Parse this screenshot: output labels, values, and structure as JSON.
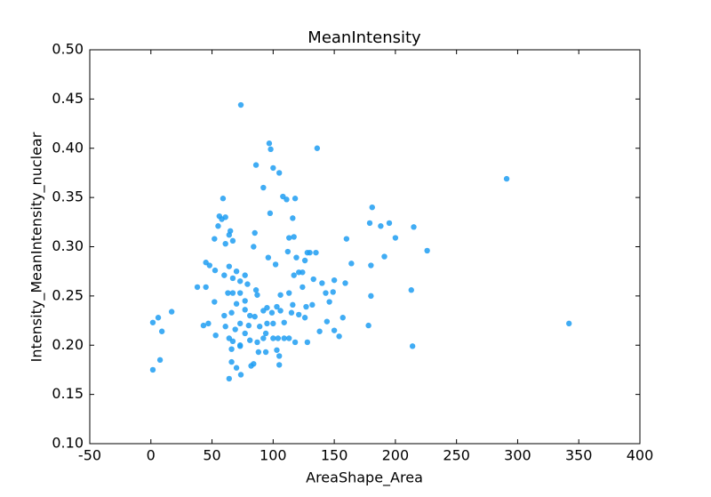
{
  "chart_data": {
    "type": "scatter",
    "title": "MeanIntensity",
    "xlabel": "AreaShape_Area",
    "ylabel": "Intensity_MeanIntensity_nuclear",
    "color": "#1e9ef2",
    "xlim": [
      -50,
      400
    ],
    "xticks": [
      -50,
      0,
      50,
      100,
      150,
      200,
      250,
      300,
      350,
      400
    ],
    "ylim": [
      0.1,
      0.5
    ],
    "yticks": [
      {
        "value": 0.1,
        "label": "0.10"
      },
      {
        "value": 0.15,
        "label": "0.15"
      },
      {
        "value": 0.2,
        "label": "0.20"
      },
      {
        "value": 0.25,
        "label": "0.25"
      },
      {
        "value": 0.3,
        "label": "0.30"
      },
      {
        "value": 0.35,
        "label": "0.35"
      },
      {
        "value": 0.4,
        "label": "0.40"
      },
      {
        "value": 0.45,
        "label": "0.45"
      },
      {
        "value": 0.5,
        "label": "0.50"
      }
    ],
    "x": [
      73.6,
      291,
      342,
      96.8,
      98,
      136,
      100,
      105,
      86,
      92,
      108,
      111,
      118,
      116,
      97.5,
      59,
      56,
      58,
      61,
      55,
      65,
      64,
      52,
      61,
      67,
      84,
      85,
      113,
      117,
      112,
      102,
      96,
      119,
      126,
      128,
      130,
      135,
      160,
      164,
      179,
      181,
      188,
      195,
      200,
      215,
      226,
      191,
      180,
      180,
      213,
      178,
      214,
      154,
      1.6,
      1.6,
      6,
      7.5,
      9,
      17,
      38,
      45,
      48,
      45,
      43,
      47,
      52,
      53,
      52.5,
      64,
      70,
      73.6,
      66,
      66,
      82,
      84,
      88,
      94,
      105,
      105,
      100,
      109,
      118,
      128,
      138,
      144,
      150,
      157,
      146,
      143,
      149,
      150,
      159,
      140,
      133,
      124,
      121,
      117,
      124,
      127,
      132,
      116,
      113,
      106,
      106,
      109,
      115,
      121,
      126,
      95,
      92,
      87,
      86,
      79,
      77,
      70,
      73,
      67,
      64,
      60,
      67,
      63,
      73,
      77,
      70,
      66,
      77,
      81,
      85,
      80,
      73,
      69,
      77,
      81,
      87,
      94,
      89,
      95,
      100,
      99,
      103,
      67,
      73,
      64,
      61,
      60,
      73,
      104,
      113,
      103,
      92
    ],
    "values": [
      0.444,
      0.369,
      0.222,
      0.405,
      0.399,
      0.4,
      0.38,
      0.375,
      0.383,
      0.36,
      0.351,
      0.348,
      0.349,
      0.329,
      0.334,
      0.349,
      0.331,
      0.328,
      0.33,
      0.321,
      0.316,
      0.312,
      0.308,
      0.303,
      0.306,
      0.3,
      0.314,
      0.309,
      0.31,
      0.295,
      0.282,
      0.289,
      0.289,
      0.286,
      0.294,
      0.294,
      0.294,
      0.308,
      0.283,
      0.324,
      0.34,
      0.321,
      0.324,
      0.309,
      0.32,
      0.296,
      0.29,
      0.281,
      0.25,
      0.256,
      0.22,
      0.199,
      0.209,
      0.175,
      0.223,
      0.228,
      0.185,
      0.214,
      0.234,
      0.259,
      0.284,
      0.281,
      0.259,
      0.22,
      0.222,
      0.244,
      0.21,
      0.276,
      0.166,
      0.177,
      0.17,
      0.183,
      0.196,
      0.179,
      0.181,
      0.193,
      0.193,
      0.189,
      0.18,
      0.207,
      0.207,
      0.203,
      0.203,
      0.214,
      0.224,
      0.215,
      0.228,
      0.244,
      0.253,
      0.254,
      0.266,
      0.263,
      0.263,
      0.267,
      0.274,
      0.274,
      0.271,
      0.259,
      0.239,
      0.241,
      0.241,
      0.253,
      0.251,
      0.235,
      0.223,
      0.233,
      0.231,
      0.228,
      0.238,
      0.235,
      0.251,
      0.256,
      0.262,
      0.271,
      0.275,
      0.265,
      0.268,
      0.28,
      0.271,
      0.253,
      0.253,
      0.253,
      0.245,
      0.242,
      0.233,
      0.236,
      0.23,
      0.229,
      0.22,
      0.222,
      0.216,
      0.212,
      0.205,
      0.203,
      0.212,
      0.219,
      0.222,
      0.222,
      0.233,
      0.239,
      0.204,
      0.2,
      0.207,
      0.219,
      0.23,
      0.199,
      0.207,
      0.207,
      0.195,
      0.207
    ]
  }
}
